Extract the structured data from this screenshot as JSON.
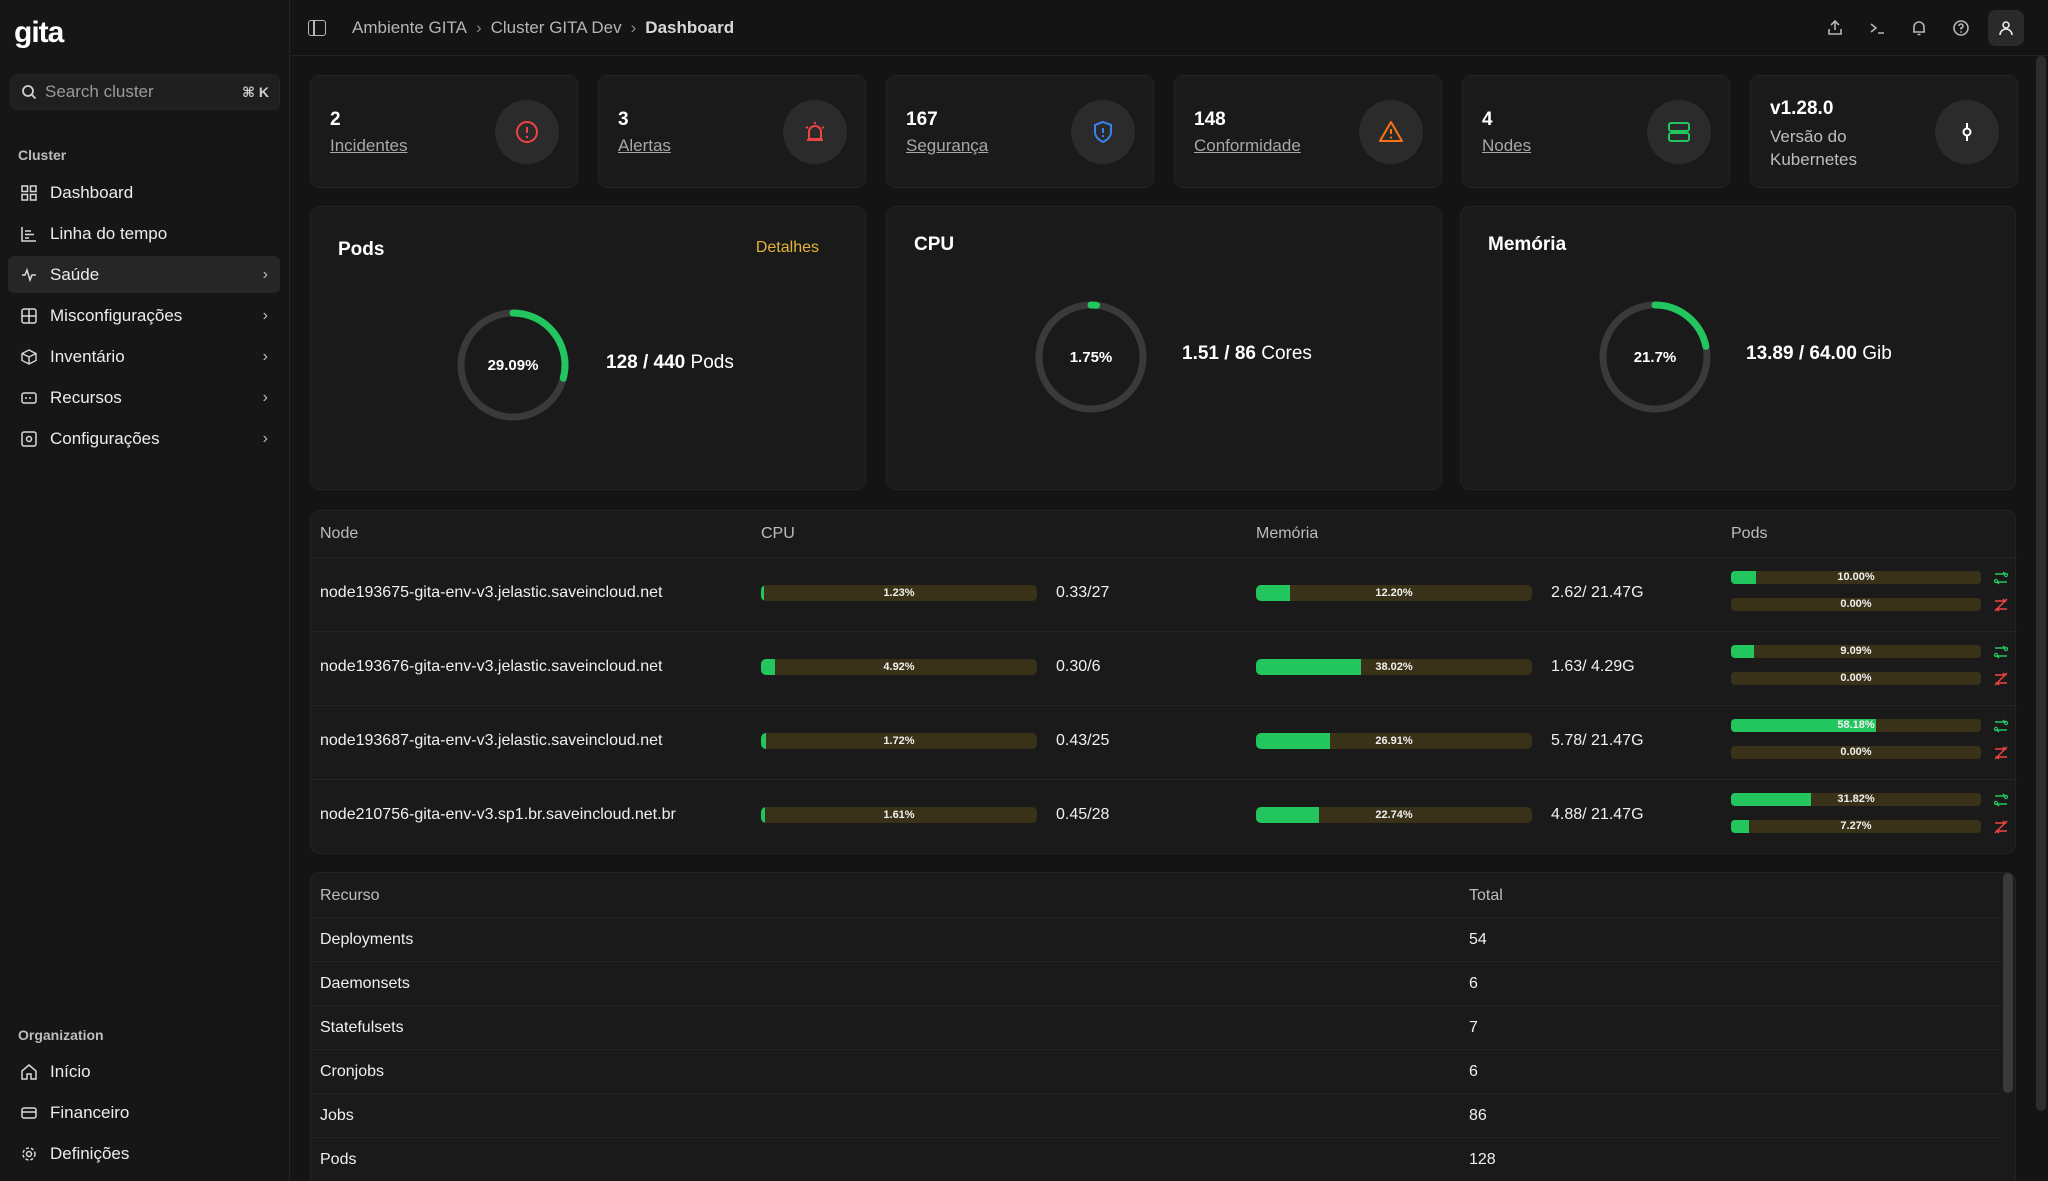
{
  "app": {
    "logo": "gita"
  },
  "search": {
    "placeholder": "Search cluster",
    "shortcut": "⌘ K"
  },
  "sidebar": {
    "cluster_label": "Cluster",
    "items": [
      {
        "label": "Dashboard",
        "icon": "dashboard-grid-icon"
      },
      {
        "label": "Linha do tempo",
        "icon": "timeline-chart-icon"
      },
      {
        "label": "Saúde",
        "icon": "activity-pulse-icon",
        "active": true
      },
      {
        "label": "Misconfigurações",
        "icon": "misconfig-icon"
      },
      {
        "label": "Inventário",
        "icon": "box-icon"
      },
      {
        "label": "Recursos",
        "icon": "resources-icon"
      },
      {
        "label": "Configurações",
        "icon": "settings-icon"
      }
    ],
    "org_label": "Organization",
    "org_items": [
      {
        "label": "Início",
        "icon": "home-icon"
      },
      {
        "label": "Financeiro",
        "icon": "credit-card-icon"
      },
      {
        "label": "Definições",
        "icon": "gear-icon"
      }
    ]
  },
  "breadcrumb": {
    "items": [
      "Ambiente GITA",
      "Cluster GITA Dev",
      "Dashboard"
    ]
  },
  "stats": [
    {
      "value": "2",
      "label": "Incidentes",
      "icon": "alert-circle-icon",
      "color": "#ef4444"
    },
    {
      "value": "3",
      "label": "Alertas",
      "icon": "siren-icon",
      "color": "#ef4444"
    },
    {
      "value": "167",
      "label": "Segurança",
      "icon": "shield-icon",
      "color": "#3b82f6"
    },
    {
      "value": "148",
      "label": "Conformidade",
      "icon": "warning-triangle-icon",
      "color": "#f97316"
    },
    {
      "value": "4",
      "label": "Nodes",
      "icon": "server-icon",
      "color": "#22c55e"
    },
    {
      "value": "v1.28.0",
      "label": "Versão do Kubernetes",
      "icon": "git-commit-icon",
      "color": "#ffffff"
    }
  ],
  "metrics": {
    "pods": {
      "title": "Pods",
      "details": "Detalhes",
      "percent_label": "29.09%",
      "percent": 29.09,
      "used": "128",
      "total": "440",
      "unit": "Pods"
    },
    "cpu": {
      "title": "CPU",
      "percent_label": "1.75%",
      "percent": 1.75,
      "used": "1.51",
      "total": "86",
      "unit": "Cores"
    },
    "memory": {
      "title": "Memória",
      "percent_label": "21.7%",
      "percent": 21.7,
      "used": "13.89",
      "total": "64.00",
      "unit": "Gib"
    }
  },
  "node_table": {
    "headers": [
      "Node",
      "CPU",
      "Memória",
      "Pods"
    ],
    "rows": [
      {
        "name": "node193675-gita-env-v3.jelastic.saveincloud.net",
        "cpu_pct": 1.23,
        "cpu_label": "1.23%",
        "cpu_amt": "0.33/27",
        "mem_pct": 12.2,
        "mem_label": "12.20%",
        "mem_amt": "2.62/ 21.47G",
        "pods_a_pct": 10.0,
        "pods_a_label": "10.00%",
        "pods_b_pct": 0.0,
        "pods_b_label": "0.00%"
      },
      {
        "name": "node193676-gita-env-v3.jelastic.saveincloud.net",
        "cpu_pct": 4.92,
        "cpu_label": "4.92%",
        "cpu_amt": "0.30/6",
        "mem_pct": 38.02,
        "mem_label": "38.02%",
        "mem_amt": "1.63/ 4.29G",
        "pods_a_pct": 9.09,
        "pods_a_label": "9.09%",
        "pods_b_pct": 0.0,
        "pods_b_label": "0.00%"
      },
      {
        "name": "node193687-gita-env-v3.jelastic.saveincloud.net",
        "cpu_pct": 1.72,
        "cpu_label": "1.72%",
        "cpu_amt": "0.43/25",
        "mem_pct": 26.91,
        "mem_label": "26.91%",
        "mem_amt": "5.78/ 21.47G",
        "pods_a_pct": 58.18,
        "pods_a_label": "58.18%",
        "pods_b_pct": 0.0,
        "pods_b_label": "0.00%"
      },
      {
        "name": "node210756-gita-env-v3.sp1.br.saveincloud.net.br",
        "cpu_pct": 1.61,
        "cpu_label": "1.61%",
        "cpu_amt": "0.45/28",
        "mem_pct": 22.74,
        "mem_label": "22.74%",
        "mem_amt": "4.88/ 21.47G",
        "pods_a_pct": 31.82,
        "pods_a_label": "31.82%",
        "pods_b_pct": 7.27,
        "pods_b_label": "7.27%"
      }
    ]
  },
  "resource_table": {
    "headers": [
      "Recurso",
      "Total"
    ],
    "rows": [
      {
        "name": "Deployments",
        "total": "54"
      },
      {
        "name": "Daemonsets",
        "total": "6"
      },
      {
        "name": "Statefulsets",
        "total": "7"
      },
      {
        "name": "Cronjobs",
        "total": "6"
      },
      {
        "name": "Jobs",
        "total": "86"
      },
      {
        "name": "Pods",
        "total": "128"
      }
    ]
  },
  "colors": {
    "accent_green": "#22c55e",
    "bar_track": "#3a3218",
    "details_link": "#e4b43a"
  }
}
